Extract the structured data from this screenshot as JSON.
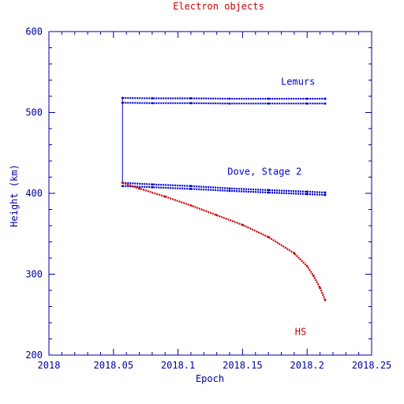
{
  "chart_data": {
    "type": "scatter",
    "title": "Electron objects",
    "xlabel": "Epoch",
    "ylabel": "Height (km)",
    "xlim": [
      2018,
      2018.25
    ],
    "ylim": [
      200,
      600
    ],
    "x_ticks": [
      "2018",
      "2018.05",
      "2018.1",
      "2018.15",
      "2018.2",
      "2018.25"
    ],
    "y_ticks": [
      "200",
      "300",
      "400",
      "500",
      "600"
    ],
    "grid": false,
    "colors": {
      "axis": "#0000a0",
      "blue_series": "#0000cc",
      "red_series": "#cc0000",
      "title": "#cc0000"
    },
    "series": [
      {
        "color": "#0000cc",
        "x": [
          2018.057,
          2018.08,
          2018.11,
          2018.14,
          2018.17,
          2018.2,
          2018.214
        ],
        "y": [
          518,
          517.5,
          517.5,
          517,
          517,
          517,
          517
        ]
      },
      {
        "color": "#0000cc",
        "x": [
          2018.057,
          2018.08,
          2018.11,
          2018.14,
          2018.17,
          2018.2,
          2018.214
        ],
        "y": [
          512,
          511.5,
          511.5,
          511,
          511,
          511,
          511
        ]
      },
      {
        "color": "#0000cc",
        "x": [
          2018.057,
          2018.08,
          2018.11,
          2018.14,
          2018.17,
          2018.2,
          2018.214
        ],
        "y": [
          413,
          411,
          409,
          406,
          404,
          402,
          401
        ]
      },
      {
        "color": "#0000cc",
        "x": [
          2018.057,
          2018.08,
          2018.11,
          2018.14,
          2018.17,
          2018.2,
          2018.214
        ],
        "y": [
          409,
          407.5,
          405.5,
          403,
          401,
          399,
          398
        ]
      },
      {
        "color": "#cc0000",
        "x": [
          2018.057,
          2018.07,
          2018.09,
          2018.11,
          2018.13,
          2018.15,
          2018.17,
          2018.19,
          2018.2,
          2018.205,
          2018.21,
          2018.214
        ],
        "y": [
          413,
          406,
          396,
          385,
          373,
          361,
          346,
          326,
          310,
          298,
          283,
          268
        ]
      }
    ],
    "connector": {
      "x": 2018.057,
      "y_from": 413,
      "y_to": 518
    },
    "annotations": [
      {
        "text": "Lemurs",
        "x": 2018.193,
        "y": 538,
        "color": "#0000cc"
      },
      {
        "text": "Dove, Stage 2",
        "x": 2018.167,
        "y": 427,
        "color": "#0000cc"
      },
      {
        "text": "HS",
        "x": 2018.195,
        "y": 229,
        "color": "#cc0000"
      }
    ]
  }
}
